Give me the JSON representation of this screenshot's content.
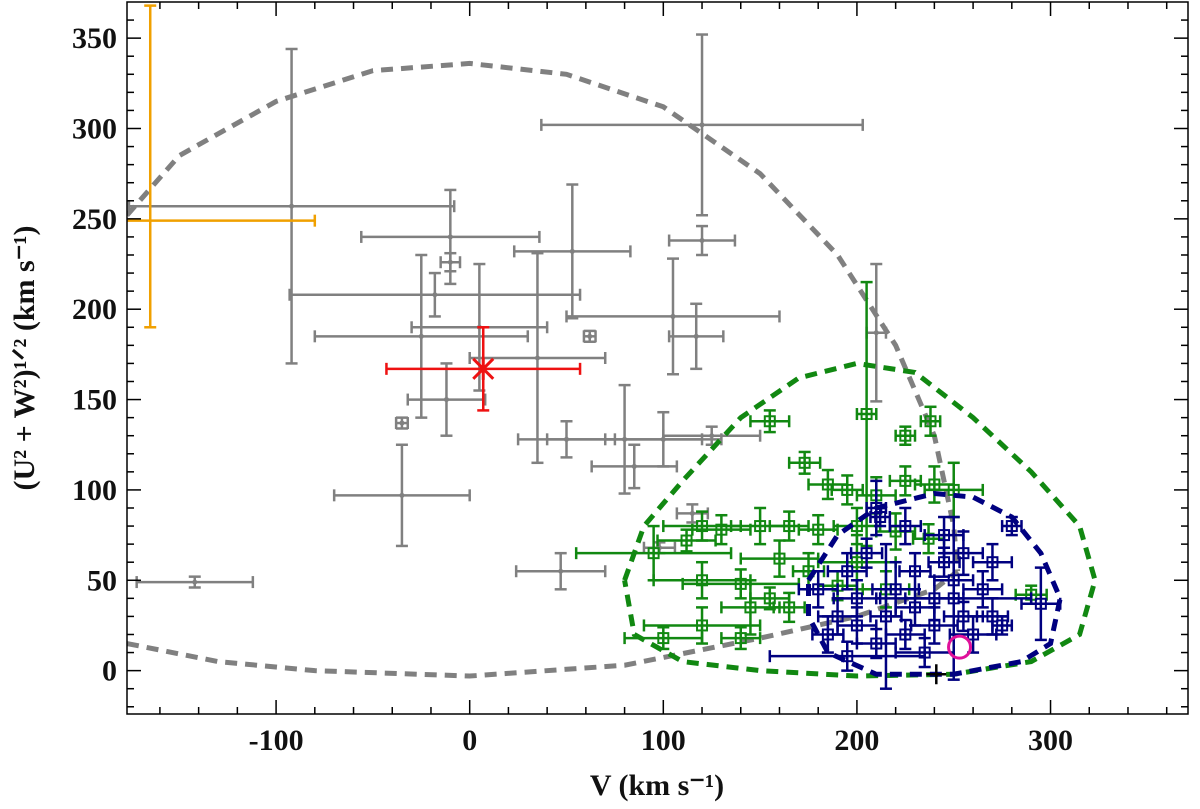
{
  "chart_data": {
    "type": "scatter",
    "xlabel": "V (km s⁻¹)",
    "ylabel": "(U² + W²)¹ᐟ² (km s⁻¹)",
    "xlim": [
      -177,
      371
    ],
    "ylim": [
      -24,
      370
    ],
    "xticks": [
      -100,
      0,
      100,
      200,
      300
    ],
    "yticks": [
      0,
      50,
      100,
      150,
      200,
      250,
      300,
      350
    ],
    "xminorticks": [
      -160,
      -140,
      -120,
      -80,
      -60,
      -40,
      -20,
      20,
      40,
      60,
      80,
      120,
      140,
      160,
      180,
      220,
      240,
      260,
      280,
      320,
      340,
      360
    ],
    "yminorticks": [
      -20,
      -10,
      10,
      20,
      30,
      40,
      60,
      70,
      80,
      90,
      110,
      120,
      130,
      140,
      160,
      170,
      180,
      190,
      210,
      220,
      230,
      240,
      260,
      270,
      280,
      290,
      310,
      320,
      330,
      340,
      360
    ],
    "curves": [
      {
        "color": "#808080",
        "x": [
          -177,
          -150,
          -100,
          -50,
          0,
          50,
          100,
          150,
          190,
          220,
          240,
          250,
          252
        ],
        "y": [
          252,
          285,
          315,
          332,
          336,
          330,
          312,
          275,
          230,
          180,
          130,
          80,
          55
        ]
      },
      {
        "color": "#808080",
        "x": [
          -177,
          -130,
          -80,
          0,
          80,
          150,
          200,
          240,
          252
        ],
        "y": [
          15,
          5,
          0,
          -3,
          3,
          18,
          30,
          45,
          55
        ]
      },
      {
        "color": "#118811",
        "x": [
          80,
          90,
          110,
          140,
          170,
          200,
          230,
          260,
          290,
          315,
          323,
          315,
          290,
          250,
          200,
          150,
          110,
          85,
          80
        ],
        "y": [
          50,
          80,
          105,
          140,
          162,
          170,
          165,
          140,
          110,
          80,
          50,
          20,
          5,
          -2,
          -3,
          0,
          5,
          20,
          50
        ]
      },
      {
        "color": "#000080",
        "x": [
          175,
          190,
          210,
          240,
          260,
          280,
          295,
          305,
          300,
          285,
          250,
          210,
          185,
          175,
          175
        ],
        "y": [
          50,
          75,
          90,
          98,
          96,
          85,
          65,
          40,
          15,
          5,
          -2,
          -2,
          10,
          30,
          50
        ]
      }
    ],
    "series": [
      {
        "color": "#808080",
        "marker": "dot",
        "x": [
          -92,
          -10,
          -18,
          -10,
          -12,
          -25,
          5,
          53,
          120,
          120,
          105,
          117,
          210,
          35,
          -35,
          -35,
          62,
          -142,
          47,
          80,
          50,
          85,
          100,
          125,
          98,
          115
        ],
        "y": [
          257,
          240,
          208,
          226,
          150,
          185,
          190,
          232,
          302,
          238,
          196,
          185,
          187,
          173,
          97,
          137,
          185,
          49,
          55,
          128,
          128,
          113,
          128,
          130,
          68,
          87
        ],
        "xerr": [
          84,
          46,
          75,
          5,
          20,
          55,
          35,
          30,
          83,
          17,
          55,
          14,
          5,
          35,
          35,
          3,
          3,
          30,
          23,
          40,
          25,
          22,
          30,
          25,
          8,
          8
        ],
        "yerr": [
          87,
          26,
          12,
          5,
          20,
          45,
          35,
          37,
          50,
          8,
          32,
          18,
          38,
          58,
          28,
          3,
          3,
          3,
          10,
          30,
          10,
          12,
          15,
          5,
          3,
          5
        ]
      },
      {
        "color": "#f0a000",
        "marker": "none",
        "x": [
          -165
        ],
        "y": [
          249
        ],
        "xerr": [
          85
        ],
        "yerr": [
          [
            59,
            119
          ]
        ]
      },
      {
        "color": "#ee1111",
        "marker": "cross",
        "x": [
          7
        ],
        "y": [
          167
        ],
        "xerr": [
          50
        ],
        "yerr": [
          23
        ]
      },
      {
        "color": "#118811",
        "marker": "square",
        "x": [
          155,
          205,
          225,
          238,
          173,
          185,
          195,
          210,
          225,
          240,
          130,
          120,
          112,
          150,
          165,
          180,
          200,
          220,
          237,
          120,
          140,
          95,
          155,
          165,
          190,
          250,
          120,
          100,
          140,
          290,
          200,
          215,
          160,
          145,
          175
        ],
        "y": [
          138,
          142,
          130,
          138,
          115,
          103,
          100,
          97,
          105,
          103,
          78,
          80,
          72,
          80,
          80,
          78,
          80,
          77,
          73,
          50,
          48,
          65,
          40,
          35,
          47,
          100,
          25,
          18,
          18,
          42,
          60,
          45,
          62,
          35,
          55
        ],
        "xerr": [
          10,
          5,
          5,
          5,
          8,
          10,
          8,
          10,
          8,
          10,
          15,
          20,
          15,
          15,
          10,
          10,
          12,
          10,
          8,
          25,
          30,
          40,
          10,
          8,
          10,
          15,
          30,
          20,
          10,
          8,
          20,
          12,
          20,
          15,
          8
        ],
        "yerr": [
          6,
          73,
          5,
          8,
          6,
          8,
          8,
          10,
          8,
          10,
          8,
          8,
          6,
          10,
          8,
          8,
          10,
          10,
          8,
          10,
          8,
          15,
          6,
          8,
          8,
          15,
          10,
          6,
          6,
          5,
          15,
          10,
          10,
          15,
          10
        ]
      },
      {
        "color": "#000080",
        "marker": "square",
        "x": [
          210,
          212,
          225,
          245,
          255,
          280,
          295,
          270,
          265,
          250,
          240,
          230,
          220,
          200,
          190,
          185,
          200,
          210,
          225,
          240,
          255,
          230,
          245,
          195,
          180,
          215,
          260,
          235,
          195,
          270,
          250,
          275,
          205
        ],
        "y": [
          90,
          85,
          80,
          75,
          65,
          80,
          37,
          30,
          45,
          50,
          40,
          35,
          45,
          40,
          30,
          20,
          25,
          15,
          20,
          25,
          30,
          55,
          60,
          55,
          45,
          30,
          20,
          10,
          8,
          60,
          40,
          25,
          65
        ],
        "xerr": [
          5,
          5,
          8,
          10,
          10,
          5,
          10,
          8,
          10,
          10,
          15,
          10,
          12,
          12,
          10,
          8,
          10,
          10,
          10,
          12,
          10,
          8,
          8,
          10,
          10,
          8,
          12,
          15,
          40,
          10,
          40,
          5,
          8
        ],
        "yerr": [
          15,
          5,
          10,
          10,
          12,
          5,
          20,
          10,
          10,
          10,
          12,
          10,
          15,
          10,
          10,
          10,
          10,
          8,
          8,
          10,
          8,
          10,
          8,
          10,
          10,
          40,
          10,
          8,
          8,
          10,
          45,
          5,
          8
        ]
      },
      {
        "color": "#e0109a",
        "marker": "circle",
        "x": [
          253
        ],
        "y": [
          13
        ]
      },
      {
        "color": "#000000",
        "marker": "plus",
        "x": [
          241
        ],
        "y": [
          -2
        ]
      }
    ]
  }
}
